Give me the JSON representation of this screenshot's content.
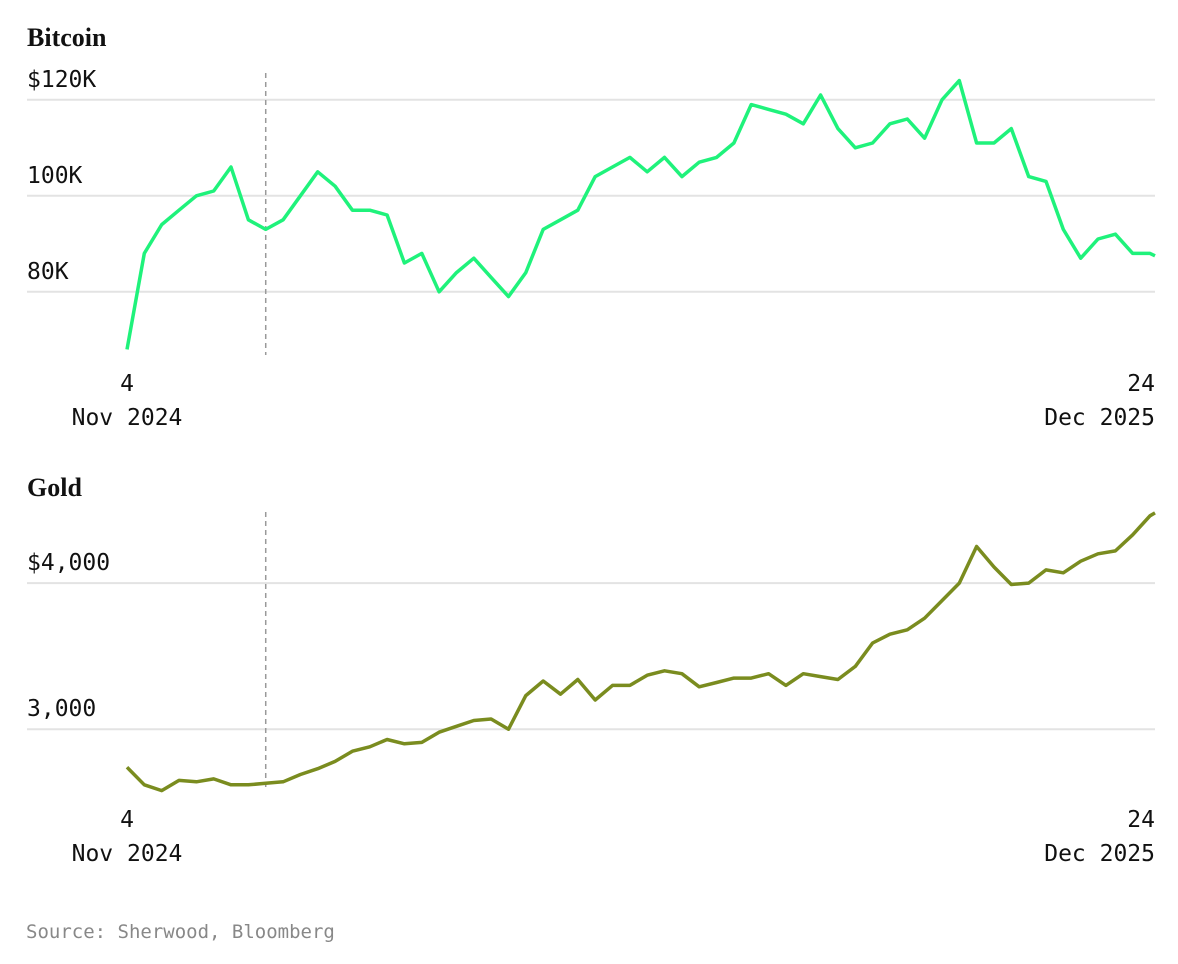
{
  "chart_data": [
    {
      "type": "line",
      "title": "Bitcoin",
      "color": "#1ff27b",
      "x": [
        "2024-11-04",
        "2024-11-11",
        "2024-11-18",
        "2024-11-25",
        "2024-12-02",
        "2024-12-09",
        "2024-12-16",
        "2024-12-23",
        "2024-12-30",
        "2025-01-06",
        "2025-01-13",
        "2025-01-20",
        "2025-01-27",
        "2025-02-03",
        "2025-02-10",
        "2025-02-17",
        "2025-02-24",
        "2025-03-03",
        "2025-03-10",
        "2025-03-17",
        "2025-03-24",
        "2025-03-31",
        "2025-04-07",
        "2025-04-14",
        "2025-04-21",
        "2025-04-28",
        "2025-05-05",
        "2025-05-12",
        "2025-05-19",
        "2025-05-26",
        "2025-06-02",
        "2025-06-09",
        "2025-06-16",
        "2025-06-23",
        "2025-06-30",
        "2025-07-07",
        "2025-07-14",
        "2025-07-21",
        "2025-07-28",
        "2025-08-04",
        "2025-08-11",
        "2025-08-18",
        "2025-08-25",
        "2025-09-01",
        "2025-09-08",
        "2025-09-15",
        "2025-09-22",
        "2025-09-29",
        "2025-10-06",
        "2025-10-13",
        "2025-10-20",
        "2025-10-27",
        "2025-11-03",
        "2025-11-10",
        "2025-11-17",
        "2025-11-24",
        "2025-12-01",
        "2025-12-08",
        "2025-12-15",
        "2025-12-22",
        "2025-12-24"
      ],
      "values": [
        68000,
        88000,
        94000,
        97000,
        100000,
        101000,
        106000,
        95000,
        93000,
        95000,
        100000,
        105000,
        102000,
        97000,
        97000,
        96000,
        86000,
        88000,
        80000,
        84000,
        87000,
        83000,
        79000,
        84000,
        93000,
        95000,
        97000,
        104000,
        106000,
        108000,
        105000,
        108000,
        104000,
        107000,
        108000,
        111000,
        119000,
        118000,
        117000,
        115000,
        121000,
        114000,
        110000,
        111000,
        115000,
        116000,
        112000,
        120000,
        124000,
        111000,
        111000,
        114000,
        104000,
        103000,
        93000,
        87000,
        91000,
        92000,
        88000,
        88000,
        87500
      ],
      "xlim": [
        "2024-11-04",
        "2025-12-24"
      ],
      "xticks": [
        {
          "value": "2024-11-04",
          "label": [
            "4",
            "Nov 2024"
          ]
        },
        {
          "value": "2025-12-24",
          "label": [
            "24",
            "Dec 2025"
          ]
        }
      ],
      "ylim": [
        66000,
        126000
      ],
      "yticks": [
        {
          "value": 80000,
          "label": "80K"
        },
        {
          "value": 100000,
          "label": "100K"
        },
        {
          "value": 120000,
          "label": "$120K"
        }
      ],
      "vline_x": "2024-12-30",
      "grid": true
    },
    {
      "type": "line",
      "title": "Gold",
      "color": "#7a8c1f",
      "x": [
        "2024-11-04",
        "2024-11-11",
        "2024-11-18",
        "2024-11-25",
        "2024-12-02",
        "2024-12-09",
        "2024-12-16",
        "2024-12-23",
        "2024-12-30",
        "2025-01-06",
        "2025-01-13",
        "2025-01-20",
        "2025-01-27",
        "2025-02-03",
        "2025-02-10",
        "2025-02-17",
        "2025-02-24",
        "2025-03-03",
        "2025-03-10",
        "2025-03-17",
        "2025-03-24",
        "2025-03-31",
        "2025-04-07",
        "2025-04-14",
        "2025-04-21",
        "2025-04-28",
        "2025-05-05",
        "2025-05-12",
        "2025-05-19",
        "2025-05-26",
        "2025-06-02",
        "2025-06-09",
        "2025-06-16",
        "2025-06-23",
        "2025-06-30",
        "2025-07-07",
        "2025-07-14",
        "2025-07-21",
        "2025-07-28",
        "2025-08-04",
        "2025-08-11",
        "2025-08-18",
        "2025-08-25",
        "2025-09-01",
        "2025-09-08",
        "2025-09-15",
        "2025-09-22",
        "2025-09-29",
        "2025-10-06",
        "2025-10-13",
        "2025-10-20",
        "2025-10-27",
        "2025-11-03",
        "2025-11-10",
        "2025-11-17",
        "2025-11-24",
        "2025-12-01",
        "2025-12-08",
        "2025-12-15",
        "2025-12-22",
        "2025-12-24"
      ],
      "values": [
        2740,
        2620,
        2580,
        2650,
        2640,
        2660,
        2620,
        2620,
        2630,
        2640,
        2690,
        2730,
        2780,
        2850,
        2880,
        2930,
        2900,
        2910,
        2980,
        3020,
        3060,
        3070,
        3000,
        3230,
        3330,
        3240,
        3340,
        3200,
        3300,
        3300,
        3370,
        3400,
        3380,
        3290,
        3320,
        3350,
        3350,
        3380,
        3300,
        3380,
        3360,
        3340,
        3430,
        3590,
        3650,
        3680,
        3760,
        3880,
        4000,
        4250,
        4110,
        3990,
        4000,
        4090,
        4070,
        4150,
        4200,
        4220,
        4330,
        4460,
        4480
      ],
      "xlim": [
        "2024-11-04",
        "2025-12-24"
      ],
      "xticks": [
        {
          "value": "2024-11-04",
          "label": [
            "4",
            "Nov 2024"
          ]
        },
        {
          "value": "2025-12-24",
          "label": [
            "24",
            "Dec 2025"
          ]
        }
      ],
      "ylim": [
        2550,
        4500
      ],
      "yticks": [
        {
          "value": 3000,
          "label": "3,000"
        },
        {
          "value": 4000,
          "label": "$4,000"
        }
      ],
      "vline_x": "2024-12-30",
      "grid": true
    }
  ],
  "source": "Source: Sherwood, Bloomberg"
}
